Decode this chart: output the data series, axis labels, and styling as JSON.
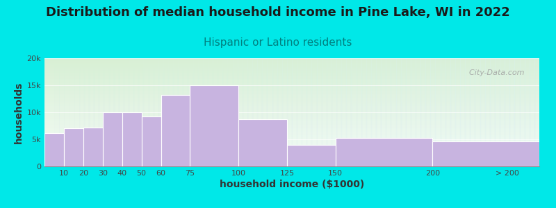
{
  "title": "Distribution of median household income in Pine Lake, WI in 2022",
  "subtitle": "Hispanic or Latino residents",
  "xlabel": "household income ($1000)",
  "ylabel": "households",
  "bar_labels": [
    "10",
    "20",
    "30",
    "40",
    "50",
    "60",
    "75",
    "100",
    "125",
    "150",
    "200",
    "> 200"
  ],
  "bar_values": [
    6200,
    7000,
    7200,
    10000,
    10000,
    9200,
    13200,
    15000,
    8700,
    4000,
    5200,
    4600
  ],
  "bar_lefts": [
    0,
    10,
    20,
    30,
    40,
    50,
    60,
    75,
    100,
    125,
    150,
    200
  ],
  "bar_widths": [
    10,
    10,
    10,
    10,
    10,
    10,
    15,
    25,
    25,
    25,
    50,
    55
  ],
  "bar_color": "#c8b4e0",
  "bar_edge_color": "#ffffff",
  "background_color": "#00e8e8",
  "plot_bg_top_left": "#d8efd4",
  "plot_bg_bottom_right": "#f0f8f0",
  "plot_bg_right": "#e8f4f8",
  "title_fontsize": 13,
  "title_color": "#1a1a1a",
  "subtitle_fontsize": 11,
  "subtitle_color": "#008080",
  "axis_label_fontsize": 10,
  "axis_label_color": "#333333",
  "tick_fontsize": 8,
  "ylim": [
    0,
    20000
  ],
  "yticks": [
    0,
    5000,
    10000,
    15000,
    20000
  ],
  "ytick_labels": [
    "0",
    "5k",
    "10k",
    "15k",
    "20k"
  ],
  "watermark_text": "  City-Data.com",
  "watermark_color": "#a0a0a0"
}
